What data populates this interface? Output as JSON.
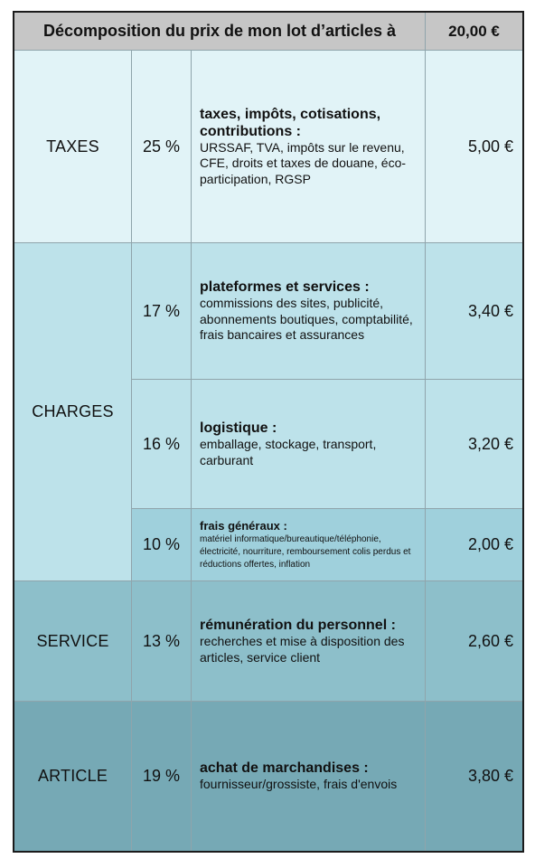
{
  "header": {
    "title": "Décomposition du prix de mon lot d’articles à",
    "total": "20,00 €"
  },
  "rows": [
    {
      "percent": "25 %",
      "title": "taxes, impôts, cotisations, contributions :",
      "details": "URSSAF, TVA, impôts sur le revenu, CFE, droits et taxes de douane, éco-participation, RGSP",
      "amount": "5,00 €"
    },
    {
      "percent": "17 %",
      "title": "plateformes et services :",
      "details": "commissions des sites, publicité, abonnements boutiques, comptabilité, frais bancaires et assurances",
      "amount": "3,40 €"
    },
    {
      "percent": "16 %",
      "title": "logistique :",
      "details": "emballage, stockage, transport, carburant",
      "amount": "3,20 €"
    },
    {
      "percent": "10 %",
      "title": "frais généraux :",
      "details": "matériel informatique/bureautique/téléphonie, électricité, nourriture, remboursement colis perdus et réductions offertes, inflation",
      "amount": "2,00 €"
    },
    {
      "percent": "13 %",
      "title": "rémunération du personnel :",
      "details": "recherches et mise à disposition des articles, service client",
      "amount": "2,60 €"
    },
    {
      "percent": "19 %",
      "title": "achat de marchandises :",
      "details": "fournisseur/grossiste, frais d'envois",
      "amount": "3,80 €"
    }
  ],
  "categories": {
    "taxes": "TAXES",
    "charges": "CHARGES",
    "service": "SERVICE",
    "article": "ARTICLE"
  },
  "colors": {
    "header_bg": "#c6c6c6",
    "taxes_bg": "#e1f3f7",
    "charges_bg": "#bde2ea",
    "charges_frais_bg": "#9fd0dc",
    "service_bg": "#8dbfca",
    "article_bg": "#76a9b5",
    "border": "#1b1b1b"
  }
}
